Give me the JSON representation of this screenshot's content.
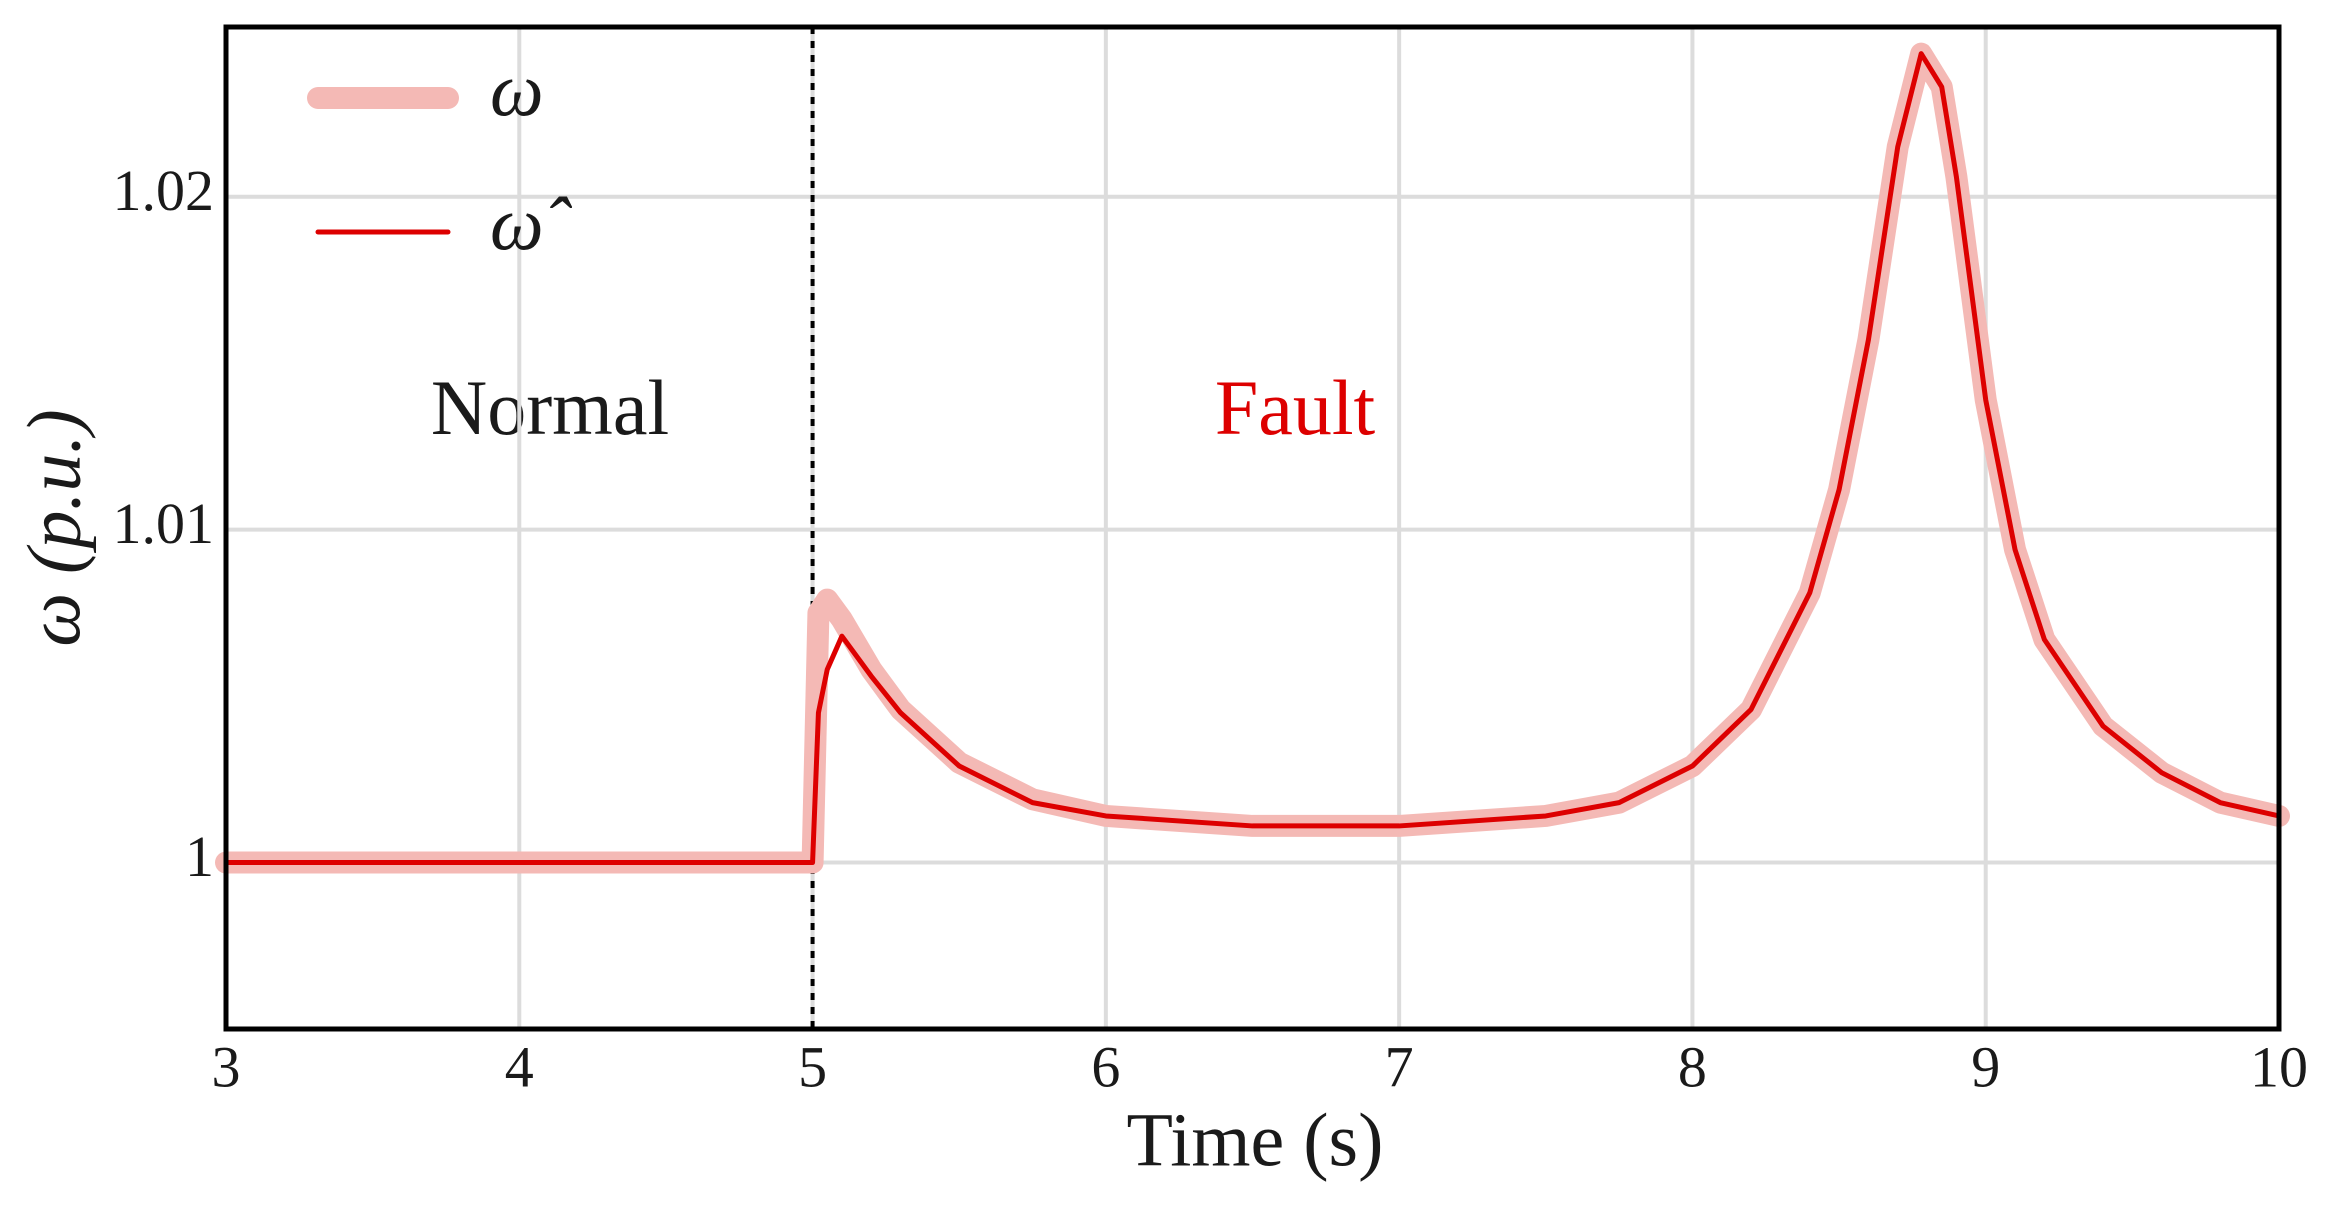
{
  "chart_data": {
    "type": "line",
    "x_label": "Time (s)",
    "y_label": "ω (p.u.)",
    "annotations": [
      "Normal",
      "Fault"
    ],
    "fault_time": 5,
    "x": [
      3,
      4,
      4.99,
      5.0,
      5.02,
      5.05,
      5.1,
      5.2,
      5.3,
      5.5,
      5.75,
      6,
      6.5,
      7,
      7.5,
      7.75,
      8,
      8.2,
      8.4,
      8.5,
      8.6,
      8.7,
      8.78,
      8.85,
      8.9,
      9,
      9.1,
      9.2,
      9.4,
      9.6,
      9.8,
      10
    ],
    "series": [
      {
        "name": "ω",
        "color": "#f4b9b5",
        "values": [
          1,
          1,
          1,
          1,
          1.0075,
          1.0079,
          1.0073,
          1.0058,
          1.0046,
          1.003,
          1.0019,
          1.0014,
          1.0011,
          1.0011,
          1.0014,
          1.0018,
          1.0029,
          1.0046,
          1.0081,
          1.0112,
          1.0157,
          1.0215,
          1.0243,
          1.0233,
          1.0206,
          1.0139,
          1.0094,
          1.0067,
          1.0041,
          1.0027,
          1.0018,
          1.0014
        ]
      },
      {
        "name": "ω̂",
        "color": "#dd0000",
        "values": [
          1,
          1,
          1,
          1,
          1.0045,
          1.0058,
          1.0068,
          1.0056,
          1.0045,
          1.0029,
          1.0018,
          1.0014,
          1.0011,
          1.0011,
          1.0014,
          1.0018,
          1.0029,
          1.0046,
          1.0081,
          1.0112,
          1.0157,
          1.0215,
          1.0243,
          1.0233,
          1.0206,
          1.0139,
          1.0094,
          1.0067,
          1.0041,
          1.0027,
          1.0018,
          1.0014
        ]
      }
    ],
    "xlim": [
      3,
      10
    ],
    "xticks": [
      3,
      4,
      5,
      6,
      7,
      8,
      9,
      10
    ],
    "ylim": [
      0.995,
      1.0251
    ],
    "yticks": [
      1,
      1.01,
      1.02
    ],
    "grid": true
  }
}
